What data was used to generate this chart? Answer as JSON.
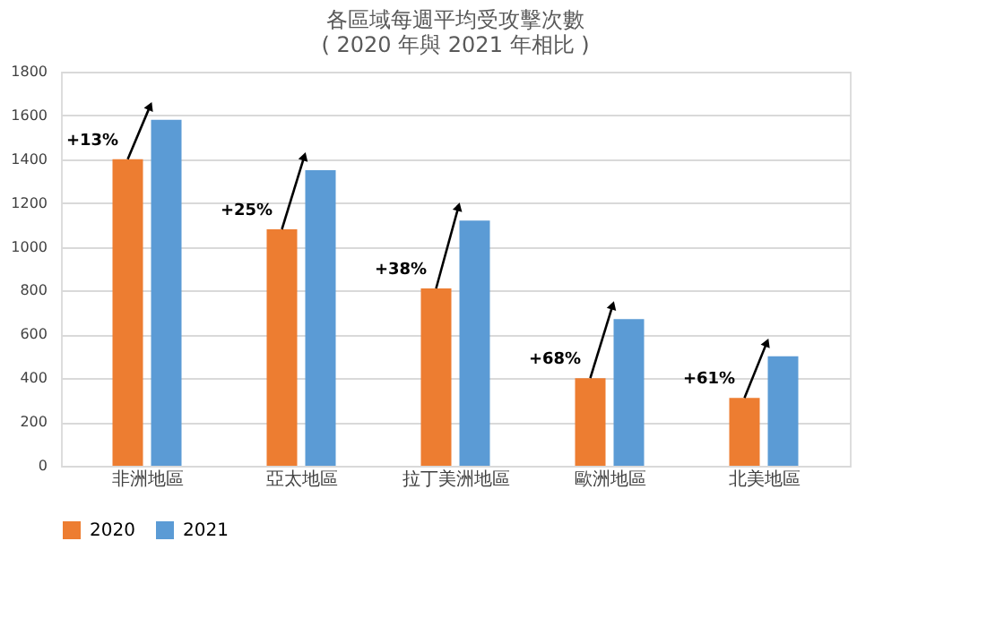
{
  "chart_data": {
    "type": "bar",
    "title": [
      "各區域每週平均受攻擊次數",
      "( 2020 年與 2021 年相比 )"
    ],
    "categories": [
      "非洲地區",
      "亞太地區",
      "拉丁美洲地區",
      "歐洲地區",
      "北美地區"
    ],
    "series": [
      {
        "name": "2020",
        "color": "#ed7d31",
        "values": [
          1400,
          1080,
          810,
          400,
          310
        ]
      },
      {
        "name": "2021",
        "color": "#5b9bd5",
        "values": [
          1580,
          1350,
          1120,
          670,
          500
        ]
      }
    ],
    "ylim": [
      0,
      1800
    ],
    "yticks": [
      0,
      200,
      400,
      600,
      800,
      1000,
      1200,
      1400,
      1600,
      1800
    ],
    "grid": "y",
    "legend": "bottom",
    "annotations": [
      {
        "text": "+13%",
        "x": "非洲地區",
        "y": 1400
      },
      {
        "text": "+25%",
        "x": "亞太地區",
        "y": 1080
      },
      {
        "text": "+38%",
        "x": "拉丁美洲地區",
        "y": 810
      },
      {
        "text": "+68%",
        "x": "歐洲地區",
        "y": 400
      },
      {
        "text": "+61%",
        "x": "北美地區",
        "y": 310
      }
    ]
  }
}
